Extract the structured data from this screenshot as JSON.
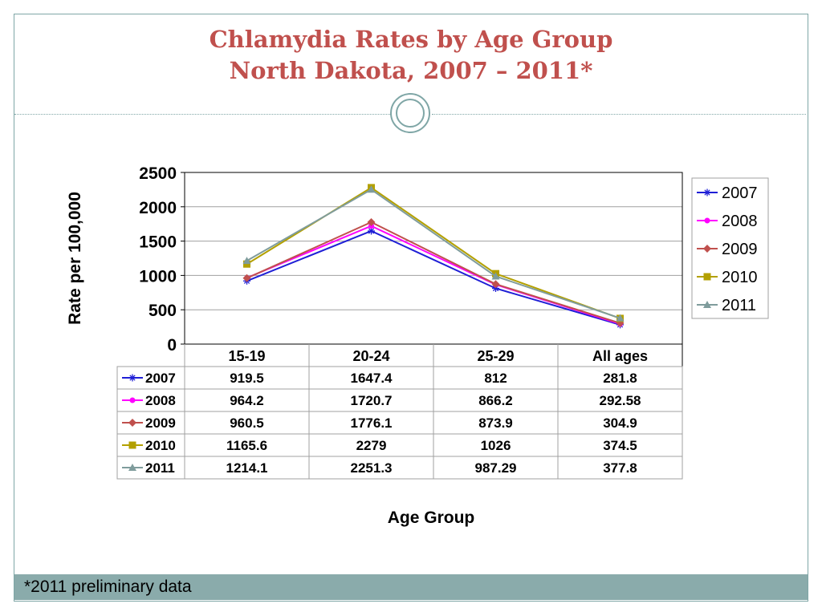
{
  "slide": {
    "title_line1": "Chlamydia Rates by Age Group",
    "title_line2": "North Dakota, 2007 – 2011*",
    "footnote": "*2011 preliminary data"
  },
  "chart_data": {
    "type": "line",
    "title": "",
    "xlabel": "Age Group",
    "ylabel": "Rate per 100,000",
    "ylim": [
      0,
      2500
    ],
    "yticks": [
      0,
      500,
      1000,
      1500,
      2000,
      2500
    ],
    "categories": [
      "15-19",
      "20-24",
      "25-29",
      "All ages"
    ],
    "legend_position": "right",
    "grid": true,
    "data_table": true,
    "series": [
      {
        "name": "2007",
        "values": [
          919.5,
          1647.4,
          812,
          281.8
        ],
        "labels": [
          "919.5",
          "1647.4",
          "812",
          "281.8"
        ],
        "color": "#1f1fd6",
        "marker": "star"
      },
      {
        "name": "2008",
        "values": [
          964.2,
          1720.7,
          866.2,
          292.58
        ],
        "labels": [
          "964.2",
          "1720.7",
          "866.2",
          "292.58"
        ],
        "color": "#ff00ff",
        "marker": "circle"
      },
      {
        "name": "2009",
        "values": [
          960.5,
          1776.1,
          873.9,
          304.9
        ],
        "labels": [
          "960.5",
          "1776.1",
          "873.9",
          "304.9"
        ],
        "color": "#c0504d",
        "marker": "diamond"
      },
      {
        "name": "2010",
        "values": [
          1165.6,
          2279,
          1026,
          374.5
        ],
        "labels": [
          "1165.6",
          "2279",
          "1026",
          "374.5"
        ],
        "color": "#b3a000",
        "marker": "square"
      },
      {
        "name": "2011",
        "values": [
          1214.1,
          2251.3,
          987.29,
          377.8
        ],
        "labels": [
          "1214.1",
          "2251.3",
          "987.29",
          "377.8"
        ],
        "color": "#7f9c9c",
        "marker": "triangle"
      }
    ]
  }
}
